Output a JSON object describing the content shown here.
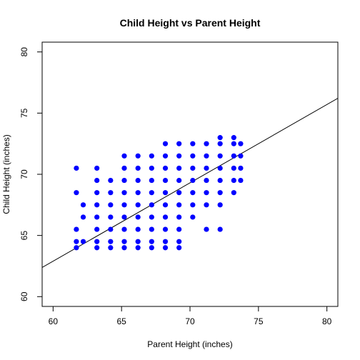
{
  "chart_data": {
    "type": "scatter",
    "title": "Child Height vs Parent Height",
    "xlabel": "Parent Height (inches)",
    "ylabel": "Child Height (inches)",
    "xlim": [
      59.2,
      80.8
    ],
    "ylim": [
      59.2,
      80.8
    ],
    "xticks": [
      60,
      65,
      70,
      75,
      80
    ],
    "yticks": [
      60,
      65,
      70,
      75,
      80
    ],
    "grid": false,
    "legend": "none",
    "point_color": "#0000ff",
    "line_color": "#000000",
    "regression_line": {
      "intercept": 24.5,
      "slope": 0.64
    },
    "points": [
      {
        "x": 61.7,
        "y": 70.5
      },
      {
        "x": 61.7,
        "y": 68.5
      },
      {
        "x": 61.7,
        "y": 65.5
      },
      {
        "x": 61.7,
        "y": 64.5
      },
      {
        "x": 61.7,
        "y": 64.0
      },
      {
        "x": 62.2,
        "y": 67.5
      },
      {
        "x": 62.2,
        "y": 66.5
      },
      {
        "x": 62.2,
        "y": 64.5
      },
      {
        "x": 63.2,
        "y": 70.5
      },
      {
        "x": 63.2,
        "y": 69.5
      },
      {
        "x": 63.2,
        "y": 68.5
      },
      {
        "x": 63.2,
        "y": 67.5
      },
      {
        "x": 63.2,
        "y": 66.5
      },
      {
        "x": 63.2,
        "y": 65.5
      },
      {
        "x": 63.2,
        "y": 64.5
      },
      {
        "x": 63.2,
        "y": 64.0
      },
      {
        "x": 64.2,
        "y": 69.5
      },
      {
        "x": 64.2,
        "y": 68.5
      },
      {
        "x": 64.2,
        "y": 67.5
      },
      {
        "x": 64.2,
        "y": 66.5
      },
      {
        "x": 64.2,
        "y": 65.5
      },
      {
        "x": 64.2,
        "y": 64.5
      },
      {
        "x": 64.2,
        "y": 64.0
      },
      {
        "x": 65.2,
        "y": 71.5
      },
      {
        "x": 65.2,
        "y": 70.5
      },
      {
        "x": 65.2,
        "y": 69.5
      },
      {
        "x": 65.2,
        "y": 68.5
      },
      {
        "x": 65.2,
        "y": 67.5
      },
      {
        "x": 65.2,
        "y": 66.5
      },
      {
        "x": 65.2,
        "y": 65.5
      },
      {
        "x": 65.2,
        "y": 64.5
      },
      {
        "x": 65.2,
        "y": 64.0
      },
      {
        "x": 66.2,
        "y": 71.5
      },
      {
        "x": 66.2,
        "y": 70.5
      },
      {
        "x": 66.2,
        "y": 69.5
      },
      {
        "x": 66.2,
        "y": 68.5
      },
      {
        "x": 66.2,
        "y": 67.5
      },
      {
        "x": 66.2,
        "y": 66.5
      },
      {
        "x": 66.2,
        "y": 65.5
      },
      {
        "x": 66.2,
        "y": 64.5
      },
      {
        "x": 66.2,
        "y": 64.0
      },
      {
        "x": 67.2,
        "y": 71.5
      },
      {
        "x": 67.2,
        "y": 70.5
      },
      {
        "x": 67.2,
        "y": 69.5
      },
      {
        "x": 67.2,
        "y": 68.5
      },
      {
        "x": 67.2,
        "y": 67.5
      },
      {
        "x": 67.2,
        "y": 66.5
      },
      {
        "x": 67.2,
        "y": 65.5
      },
      {
        "x": 67.2,
        "y": 64.5
      },
      {
        "x": 67.2,
        "y": 64.0
      },
      {
        "x": 68.2,
        "y": 72.5
      },
      {
        "x": 68.2,
        "y": 71.5
      },
      {
        "x": 68.2,
        "y": 70.5
      },
      {
        "x": 68.2,
        "y": 69.5
      },
      {
        "x": 68.2,
        "y": 68.5
      },
      {
        "x": 68.2,
        "y": 67.5
      },
      {
        "x": 68.2,
        "y": 66.5
      },
      {
        "x": 68.2,
        "y": 65.5
      },
      {
        "x": 68.2,
        "y": 64.5
      },
      {
        "x": 68.2,
        "y": 64.0
      },
      {
        "x": 69.2,
        "y": 72.5
      },
      {
        "x": 69.2,
        "y": 71.5
      },
      {
        "x": 69.2,
        "y": 70.5
      },
      {
        "x": 69.2,
        "y": 69.5
      },
      {
        "x": 69.2,
        "y": 68.5
      },
      {
        "x": 69.2,
        "y": 67.5
      },
      {
        "x": 69.2,
        "y": 66.5
      },
      {
        "x": 69.2,
        "y": 65.5
      },
      {
        "x": 69.2,
        "y": 64.5
      },
      {
        "x": 69.2,
        "y": 64.0
      },
      {
        "x": 70.2,
        "y": 72.5
      },
      {
        "x": 70.2,
        "y": 71.5
      },
      {
        "x": 70.2,
        "y": 70.5
      },
      {
        "x": 70.2,
        "y": 69.5
      },
      {
        "x": 70.2,
        "y": 68.5
      },
      {
        "x": 70.2,
        "y": 67.5
      },
      {
        "x": 70.2,
        "y": 66.5
      },
      {
        "x": 71.2,
        "y": 72.5
      },
      {
        "x": 71.2,
        "y": 71.5
      },
      {
        "x": 71.2,
        "y": 70.5
      },
      {
        "x": 71.2,
        "y": 69.5
      },
      {
        "x": 71.2,
        "y": 68.5
      },
      {
        "x": 71.2,
        "y": 67.5
      },
      {
        "x": 71.2,
        "y": 65.5
      },
      {
        "x": 72.2,
        "y": 73.0
      },
      {
        "x": 72.2,
        "y": 72.5
      },
      {
        "x": 72.2,
        "y": 71.5
      },
      {
        "x": 72.2,
        "y": 70.5
      },
      {
        "x": 72.2,
        "y": 69.5
      },
      {
        "x": 72.2,
        "y": 68.5
      },
      {
        "x": 72.2,
        "y": 67.5
      },
      {
        "x": 72.2,
        "y": 65.5
      },
      {
        "x": 73.2,
        "y": 73.0
      },
      {
        "x": 73.2,
        "y": 72.5
      },
      {
        "x": 73.2,
        "y": 71.5
      },
      {
        "x": 73.2,
        "y": 70.5
      },
      {
        "x": 73.2,
        "y": 69.5
      },
      {
        "x": 73.2,
        "y": 68.5
      },
      {
        "x": 73.7,
        "y": 72.5
      },
      {
        "x": 73.7,
        "y": 71.5
      },
      {
        "x": 73.7,
        "y": 70.5
      },
      {
        "x": 73.7,
        "y": 69.5
      }
    ]
  }
}
